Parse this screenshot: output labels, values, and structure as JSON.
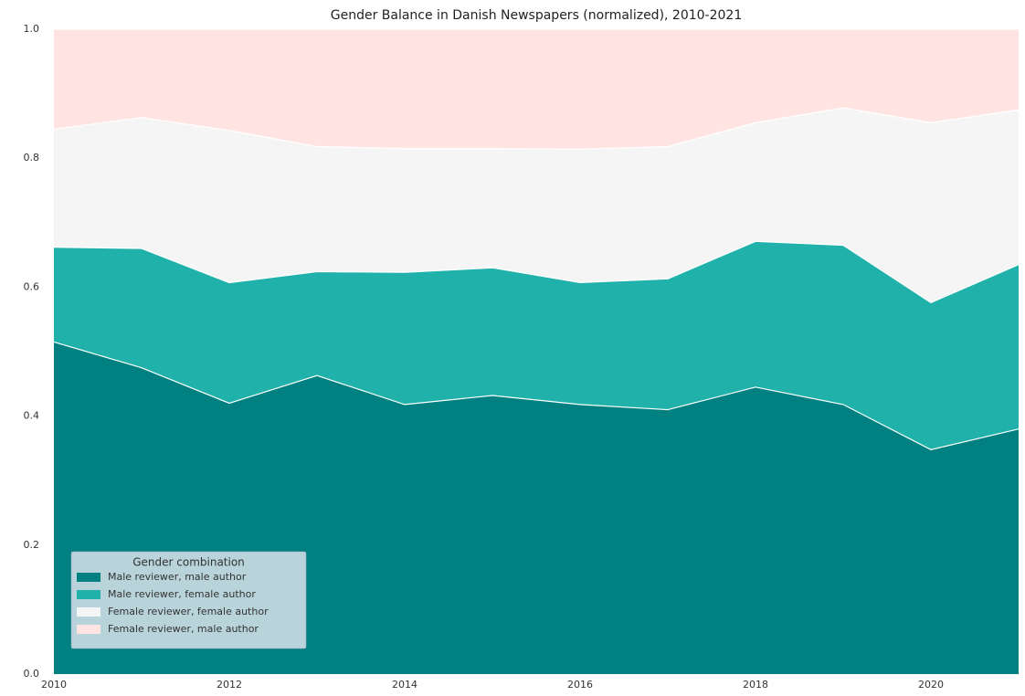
{
  "chart_data": {
    "type": "stacked_area",
    "title": "Gender Balance in Danish Newspapers (normalized), 2010-2021",
    "x": [
      2010,
      2011,
      2012,
      2013,
      2014,
      2015,
      2016,
      2017,
      2018,
      2019,
      2020,
      2021
    ],
    "series": [
      {
        "name": "Male reviewer, male author",
        "color": "#008080",
        "values": [
          0.515,
          0.475,
          0.42,
          0.463,
          0.418,
          0.432,
          0.418,
          0.41,
          0.445,
          0.418,
          0.348,
          0.38
        ]
      },
      {
        "name": "Male reviewer, female author",
        "color": "#20b2aa",
        "values": [
          0.147,
          0.185,
          0.187,
          0.161,
          0.205,
          0.198,
          0.189,
          0.203,
          0.226,
          0.247,
          0.228,
          0.255
        ]
      },
      {
        "name": "Female reviewer, female author",
        "color": "#f5f5f5",
        "values": [
          0.183,
          0.203,
          0.236,
          0.194,
          0.192,
          0.185,
          0.207,
          0.205,
          0.184,
          0.213,
          0.279,
          0.24
        ]
      },
      {
        "name": "Female reviewer, male author",
        "color": "#ffe4e1",
        "values": [
          0.155,
          0.137,
          0.157,
          0.182,
          0.185,
          0.185,
          0.186,
          0.182,
          0.145,
          0.122,
          0.145,
          0.125
        ]
      }
    ],
    "xlim": [
      2010,
      2021
    ],
    "xticks": [
      2010,
      2012,
      2014,
      2016,
      2018,
      2020
    ],
    "ylim": [
      0,
      1
    ],
    "yticks": [
      {
        "value": 0,
        "label": "0.0"
      },
      0.2,
      0.4,
      0.6,
      0.8,
      {
        "value": 1,
        "label": "1.0"
      }
    ],
    "legend_title": "Gender combination",
    "legend": "lower left",
    "grid": false
  }
}
